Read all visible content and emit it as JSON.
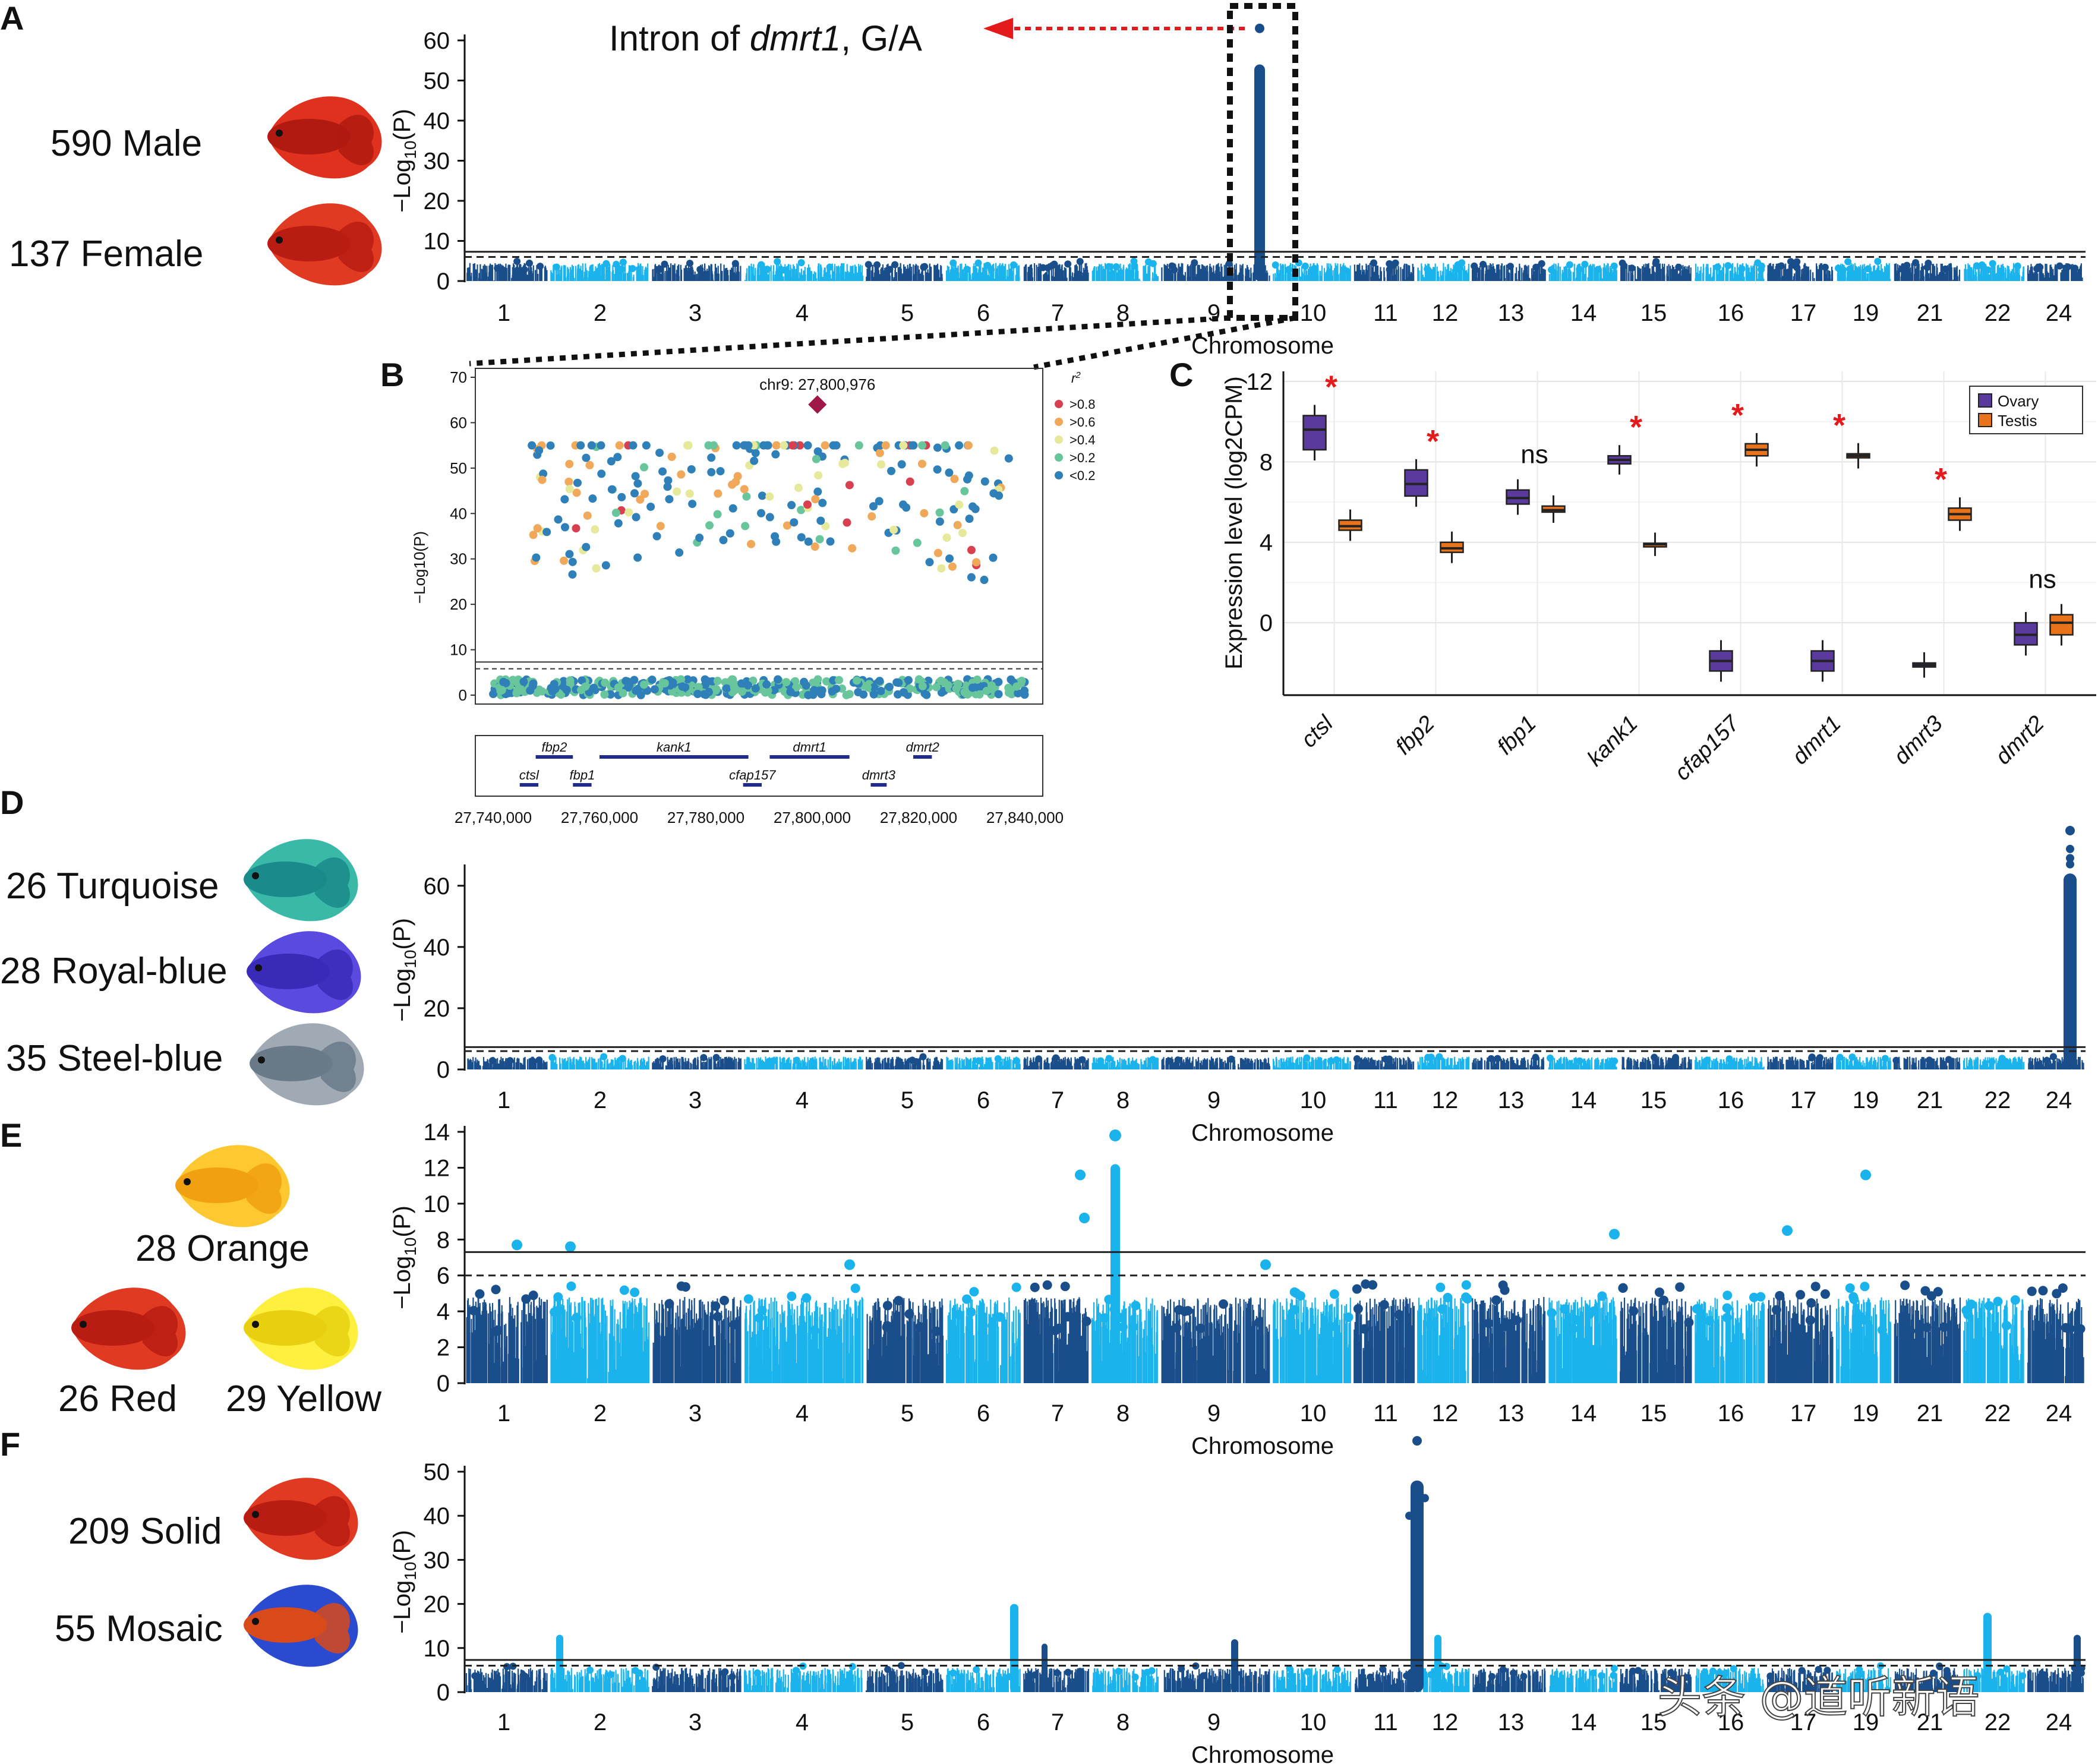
{
  "panels": {
    "A": {
      "letter": "A",
      "label_top": "590 Male",
      "label_bottom": "137 Female",
      "annotation_prefix": "Intron of ",
      "annotation_gene": "dmrt1",
      "annotation_suffix": ", G/A"
    },
    "B": {
      "letter": "B"
    },
    "C": {
      "letter": "C"
    },
    "D": {
      "letter": "D",
      "labels": [
        "26 Turquoise",
        "28 Royal-blue",
        "35 Steel-blue"
      ]
    },
    "E": {
      "letter": "E",
      "labels": [
        "28 Orange",
        "26 Red",
        "29 Yellow"
      ]
    },
    "F": {
      "letter": "F",
      "labels": [
        "209 Solid",
        "55 Mosaic"
      ]
    }
  },
  "common": {
    "y_title": "−Log10(P)",
    "x_title": "Chromosome",
    "chromosome_ticks": [
      "1",
      "2",
      "3",
      "4",
      "5",
      "6",
      "7",
      "8",
      "9",
      "10",
      "11",
      "12",
      "13",
      "14",
      "15",
      "16",
      "17",
      "19",
      "21",
      "22",
      "24"
    ]
  },
  "watermark": "头条 @道听新语",
  "colors": {
    "dark": "#1a4e8a",
    "light": "#1bb3ec",
    "red_arrow": "#e41a1c",
    "ovary": "#5b3a9e",
    "testis": "#e8731a"
  },
  "chart_data": [
    {
      "id": "A",
      "type": "scatter",
      "title": "",
      "xlabel": "Chromosome",
      "ylabel": "−Log10(P)",
      "ylim": [
        0,
        60
      ],
      "yticks": [
        0,
        10,
        20,
        30,
        40,
        50,
        60
      ],
      "threshold_solid": 7.3,
      "threshold_dashed": 6,
      "peaks": [
        {
          "chrom": "9",
          "y": 54
        },
        {
          "chrom": "9",
          "y": 63
        }
      ]
    },
    {
      "id": "B",
      "type": "scatter",
      "xlabel": "",
      "ylabel": "−Log10(P)",
      "xlim": [
        27740000,
        27840000
      ],
      "ylim": [
        0,
        70
      ],
      "xticks": [
        "27,740,000",
        "27,760,000",
        "27,780,000",
        "27,800,000",
        "27,820,000",
        "27,840,000"
      ],
      "yticks": [
        0,
        10,
        20,
        30,
        40,
        50,
        60,
        70
      ],
      "lead_snp": {
        "label": "chr9: 27,800,976",
        "x": 27800976,
        "y": 64
      },
      "legend_title": "r2",
      "legend": [
        {
          "name": ">0.8",
          "color": "#d8404f"
        },
        {
          "name": ">0.6",
          "color": "#f0a85a"
        },
        {
          "name": ">0.4",
          "color": "#e6e89a"
        },
        {
          "name": ">0.2",
          "color": "#69c59b"
        },
        {
          "name": "<0.2",
          "color": "#2f7fb8"
        }
      ],
      "genes": [
        {
          "name": "fbp2",
          "start": 27748000,
          "end": 27755000,
          "row": 0
        },
        {
          "name": "kank1",
          "start": 27760000,
          "end": 27788000,
          "row": 0
        },
        {
          "name": "dmrt1",
          "start": 27792000,
          "end": 27807000,
          "row": 0
        },
        {
          "name": "dmrt2",
          "start": 27819000,
          "end": 27822500,
          "row": 0
        },
        {
          "name": "ctsl",
          "start": 27745000,
          "end": 27748500,
          "row": 1
        },
        {
          "name": "fbp1",
          "start": 27755000,
          "end": 27758500,
          "row": 1
        },
        {
          "name": "cfap157",
          "start": 27787000,
          "end": 27790500,
          "row": 1
        },
        {
          "name": "dmrt3",
          "start": 27811000,
          "end": 27814000,
          "row": 1
        }
      ]
    },
    {
      "id": "C",
      "type": "box",
      "ylabel": "Expression level (log2CPM)",
      "yticks": [
        0,
        4,
        8,
        12
      ],
      "ylim": [
        -3.6,
        12.5
      ],
      "categories": [
        "ctsl",
        "fbp2",
        "fbp1",
        "kank1",
        "cfap157",
        "dmrt1",
        "dmrt3",
        "dmrt2"
      ],
      "significance": [
        "*",
        "*",
        "ns",
        "*",
        "*",
        "*",
        "*",
        "ns"
      ],
      "series": [
        {
          "name": "Ovary",
          "medians": [
            9.6,
            6.9,
            6.2,
            8.1,
            -1.9,
            -1.9,
            -2.1,
            -0.6
          ],
          "q1": [
            8.6,
            6.3,
            5.9,
            7.9,
            -2.4,
            -2.4,
            -2.2,
            -1.1
          ],
          "q3": [
            10.3,
            7.6,
            6.6,
            8.3,
            -1.4,
            -1.4,
            -2.0,
            0.0
          ]
        },
        {
          "name": "Testis",
          "medians": [
            4.8,
            3.7,
            5.6,
            3.9,
            8.6,
            8.3,
            5.4,
            0.0
          ],
          "q1": [
            4.6,
            3.5,
            5.5,
            3.85,
            8.3,
            8.2,
            5.1,
            -0.6
          ],
          "q3": [
            5.1,
            4.0,
            5.8,
            3.95,
            8.9,
            8.4,
            5.7,
            0.4
          ]
        }
      ]
    },
    {
      "id": "D",
      "type": "scatter",
      "xlabel": "Chromosome",
      "ylabel": "−Log10(P)",
      "ylim": [
        0,
        65
      ],
      "yticks": [
        0,
        20,
        40,
        60
      ],
      "threshold_solid": 7.3,
      "threshold_dashed": 6,
      "peaks": [
        {
          "chrom": "24",
          "y": 78
        }
      ]
    },
    {
      "id": "E",
      "type": "scatter",
      "xlabel": "Chromosome",
      "ylabel": "−Log10(P)",
      "ylim": [
        0,
        14
      ],
      "yticks": [
        0,
        2,
        4,
        6,
        8,
        10,
        12,
        14
      ],
      "threshold_solid": 7.3,
      "threshold_dashed": 6,
      "peaks": [
        {
          "chrom": "8",
          "y": 13.8
        },
        {
          "chrom": "7",
          "y": 11.6
        },
        {
          "chrom": "19",
          "y": 11.6
        }
      ]
    },
    {
      "id": "F",
      "type": "scatter",
      "xlabel": "Chromosome",
      "ylabel": "−Log10(P)",
      "ylim": [
        0,
        50
      ],
      "yticks": [
        0,
        10,
        20,
        30,
        40,
        50
      ],
      "threshold_solid": 7.3,
      "threshold_dashed": 6,
      "peaks": [
        {
          "chrom": "11",
          "y": 57
        },
        {
          "chrom": "6",
          "y": 20
        },
        {
          "chrom": "22",
          "y": 18
        }
      ]
    }
  ]
}
